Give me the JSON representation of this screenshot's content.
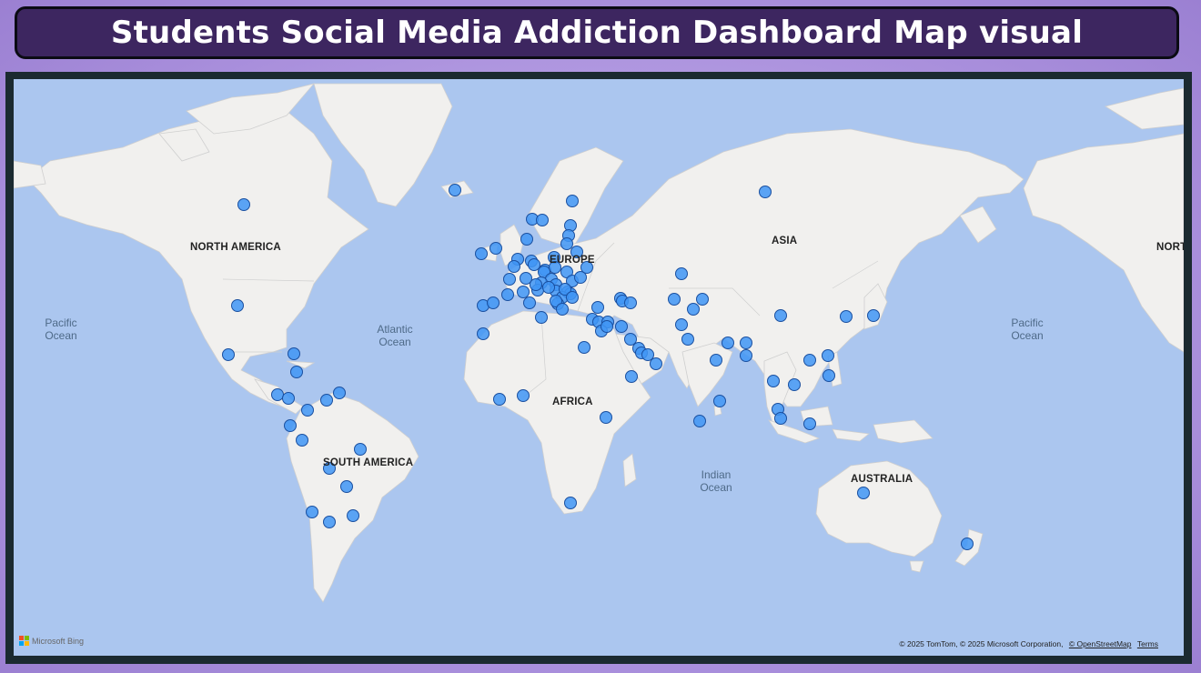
{
  "title": "Students Social Media Addiction Dashboard Map visual",
  "map": {
    "continent_labels": {
      "north_america": "NORTH AMERICA",
      "europe": "EUROPE",
      "asia": "ASIA",
      "africa": "AFRICA",
      "south_america": "SOUTH AMERICA",
      "australia": "AUSTRALIA",
      "north_america_wrap": "NORT"
    },
    "ocean_labels": {
      "pacific_left": "Pacific\nOcean",
      "atlantic": "Atlantic\nOcean",
      "indian": "Indian\nOcean",
      "pacific_right": "Pacific\nOcean"
    },
    "marker_color": "#3f95f5",
    "marker_count": 112
  },
  "footer": {
    "provider": "Microsoft Bing",
    "attribution": "© 2025 TomTom, © 2025 Microsoft Corporation,",
    "osm_link": "© OpenStreetMap",
    "terms_link": "Terms"
  }
}
